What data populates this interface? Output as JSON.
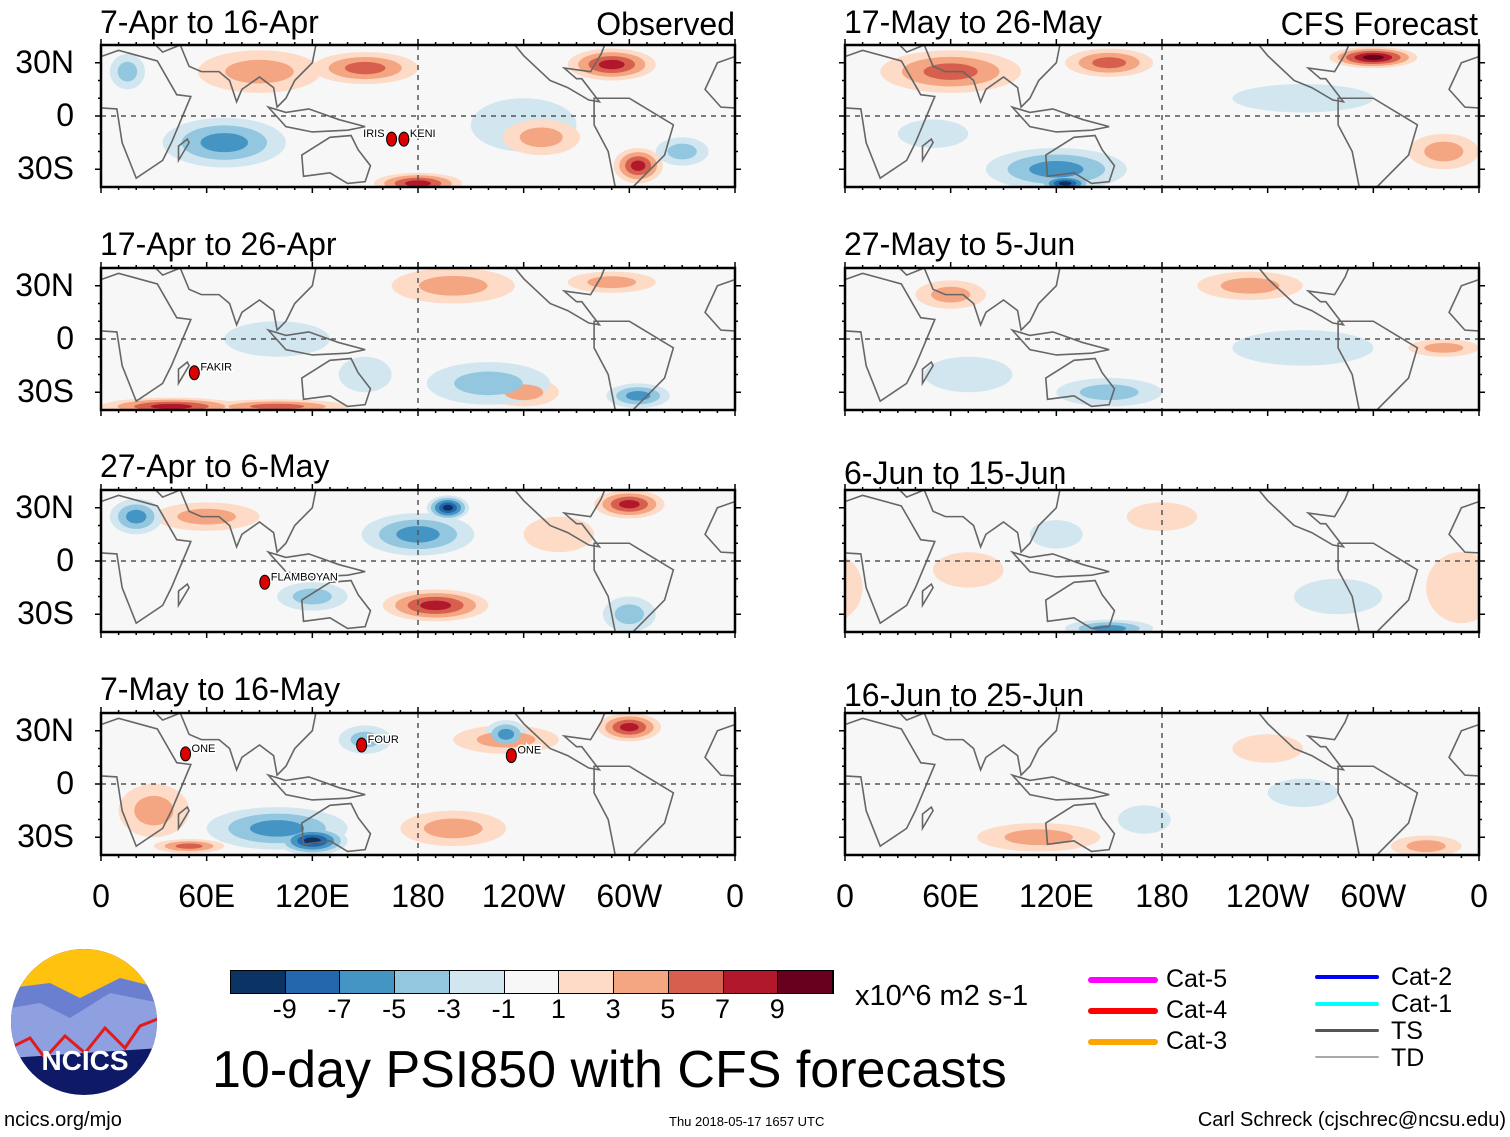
{
  "figure": {
    "main_title": "10-day PSI850 with CFS forecasts",
    "observed_label": "Observed",
    "forecast_label": "CFS Forecast",
    "site": "ncics.org/mjo",
    "timestamp": "Thu 2018-05-17 1657 UTC",
    "author": "Carl Schreck (cjschrec@ncsu.edu)",
    "logo_text": "NCICS"
  },
  "axes": {
    "lat_labels": [
      "30N",
      "0",
      "30S"
    ],
    "lon_labels": [
      "0",
      "60E",
      "120E",
      "180",
      "120W",
      "60W",
      "0"
    ],
    "lat_range": [
      -40,
      40
    ],
    "lon_range": [
      0,
      360
    ]
  },
  "colorbar": {
    "units": "x10^6 m2 s-1",
    "labels": [
      "-9",
      "-7",
      "-5",
      "-3",
      "-1",
      "1",
      "3",
      "5",
      "7",
      "9"
    ],
    "colors": [
      "#0b3363",
      "#2467ad",
      "#4494c4",
      "#93c6df",
      "#d2e6f0",
      "#f7f7f7",
      "#fddbc7",
      "#f4a582",
      "#d6604d",
      "#b2182b",
      "#67001f"
    ]
  },
  "legend": {
    "items": [
      {
        "label": "Cat-5",
        "color": "#ff00ff"
      },
      {
        "label": "Cat-4",
        "color": "#ff0000"
      },
      {
        "label": "Cat-3",
        "color": "#ffa500"
      },
      {
        "label": "Cat-2",
        "color": "#0000ff"
      },
      {
        "label": "Cat-1",
        "color": "#00ffff"
      },
      {
        "label": "TS",
        "color": "#555555"
      },
      {
        "label": "TD",
        "color": "#aaaaaa"
      }
    ]
  },
  "panels": [
    {
      "title": "7-Apr to 16-Apr",
      "type": "observed",
      "anomalies": [
        [
          150,
          27,
          30,
          9,
          5
        ],
        [
          290,
          29,
          25,
          9,
          7
        ],
        [
          90,
          25,
          35,
          12,
          3
        ],
        [
          305,
          -28,
          14,
          10,
          7
        ],
        [
          180,
          -38,
          25,
          6,
          7
        ],
        [
          250,
          -12,
          22,
          10,
          3
        ],
        [
          70,
          -15,
          35,
          14,
          -5
        ],
        [
          240,
          -5,
          30,
          15,
          -1
        ],
        [
          15,
          25,
          10,
          10,
          -3
        ],
        [
          330,
          -20,
          15,
          8,
          -3
        ]
      ],
      "storms": [
        {
          "name": "IRIS",
          "lon": 165,
          "lat": -13
        },
        {
          "name": "KENI",
          "lon": 172,
          "lat": -13
        }
      ]
    },
    {
      "title": "17-Apr to 26-Apr",
      "type": "observed",
      "anomalies": [
        [
          200,
          30,
          35,
          10,
          3
        ],
        [
          290,
          32,
          25,
          6,
          3
        ],
        [
          40,
          -38,
          40,
          5,
          7
        ],
        [
          100,
          -38,
          40,
          4,
          5
        ],
        [
          240,
          -30,
          20,
          8,
          3
        ],
        [
          100,
          0,
          30,
          10,
          -1
        ],
        [
          220,
          -25,
          35,
          12,
          -3
        ],
        [
          305,
          -32,
          18,
          7,
          -5
        ],
        [
          150,
          -20,
          15,
          10,
          -1
        ]
      ],
      "storms": [
        {
          "name": "FAKIR",
          "lon": 53,
          "lat": -19
        }
      ]
    },
    {
      "title": "27-Apr to 6-May",
      "type": "observed",
      "anomalies": [
        [
          300,
          32,
          20,
          8,
          7
        ],
        [
          190,
          -25,
          30,
          9,
          7
        ],
        [
          60,
          25,
          30,
          8,
          3
        ],
        [
          260,
          15,
          20,
          10,
          1
        ],
        [
          180,
          15,
          32,
          12,
          -5
        ],
        [
          197,
          30,
          12,
          7,
          -9
        ],
        [
          20,
          25,
          15,
          10,
          -5
        ],
        [
          120,
          -20,
          20,
          8,
          -3
        ],
        [
          300,
          -30,
          15,
          10,
          -3
        ]
      ],
      "storms": [
        {
          "name": "FLAMBOYAN",
          "lon": 93,
          "lat": -12
        }
      ]
    },
    {
      "title": "7-May to 16-May",
      "type": "observed",
      "anomalies": [
        [
          300,
          32,
          18,
          8,
          7
        ],
        [
          230,
          25,
          30,
          8,
          3
        ],
        [
          30,
          -15,
          20,
          15,
          3
        ],
        [
          200,
          -25,
          30,
          10,
          3
        ],
        [
          50,
          -35,
          20,
          4,
          5
        ],
        [
          100,
          -25,
          40,
          12,
          -5
        ],
        [
          120,
          -32,
          20,
          8,
          -9
        ],
        [
          150,
          25,
          15,
          8,
          -3
        ],
        [
          230,
          28,
          12,
          8,
          -5
        ]
      ],
      "storms": [
        {
          "name": "ONE",
          "lon": 48,
          "lat": 17
        },
        {
          "name": "FOUR",
          "lon": 148,
          "lat": 22
        },
        {
          "name": "ONE",
          "lon": 233,
          "lat": 16
        }
      ]
    },
    {
      "title": "17-May to 26-May",
      "type": "forecast",
      "anomalies": [
        [
          60,
          25,
          40,
          12,
          5
        ],
        [
          150,
          30,
          25,
          8,
          5
        ],
        [
          300,
          33,
          25,
          6,
          9
        ],
        [
          340,
          -20,
          20,
          10,
          3
        ],
        [
          120,
          -30,
          40,
          12,
          -5
        ],
        [
          125,
          -38,
          15,
          5,
          -9
        ],
        [
          260,
          10,
          40,
          8,
          -1
        ],
        [
          50,
          -10,
          20,
          8,
          -1
        ]
      ],
      "storms": []
    },
    {
      "title": "27-May to 5-Jun",
      "type": "forecast",
      "anomalies": [
        [
          60,
          25,
          20,
          8,
          3
        ],
        [
          230,
          30,
          30,
          8,
          3
        ],
        [
          340,
          -5,
          20,
          5,
          3
        ],
        [
          150,
          -30,
          30,
          8,
          -3
        ],
        [
          260,
          -5,
          40,
          10,
          -1
        ],
        [
          70,
          -20,
          25,
          10,
          -1
        ]
      ],
      "storms": []
    },
    {
      "title": "6-Jun to 15-Jun",
      "type": "forecast",
      "anomalies": [
        [
          70,
          -5,
          20,
          10,
          1
        ],
        [
          350,
          -15,
          20,
          20,
          1
        ],
        [
          180,
          25,
          20,
          8,
          1
        ],
        [
          150,
          -38,
          25,
          5,
          -5
        ],
        [
          120,
          15,
          15,
          8,
          -1
        ],
        [
          280,
          -20,
          25,
          10,
          -1
        ]
      ],
      "storms": []
    },
    {
      "title": "16-Jun to 25-Jun",
      "type": "forecast",
      "anomalies": [
        [
          110,
          -30,
          35,
          8,
          3
        ],
        [
          330,
          -35,
          20,
          6,
          3
        ],
        [
          240,
          20,
          20,
          8,
          1
        ],
        [
          260,
          -5,
          20,
          8,
          -1
        ],
        [
          170,
          -20,
          15,
          8,
          -1
        ]
      ],
      "storms": []
    }
  ]
}
